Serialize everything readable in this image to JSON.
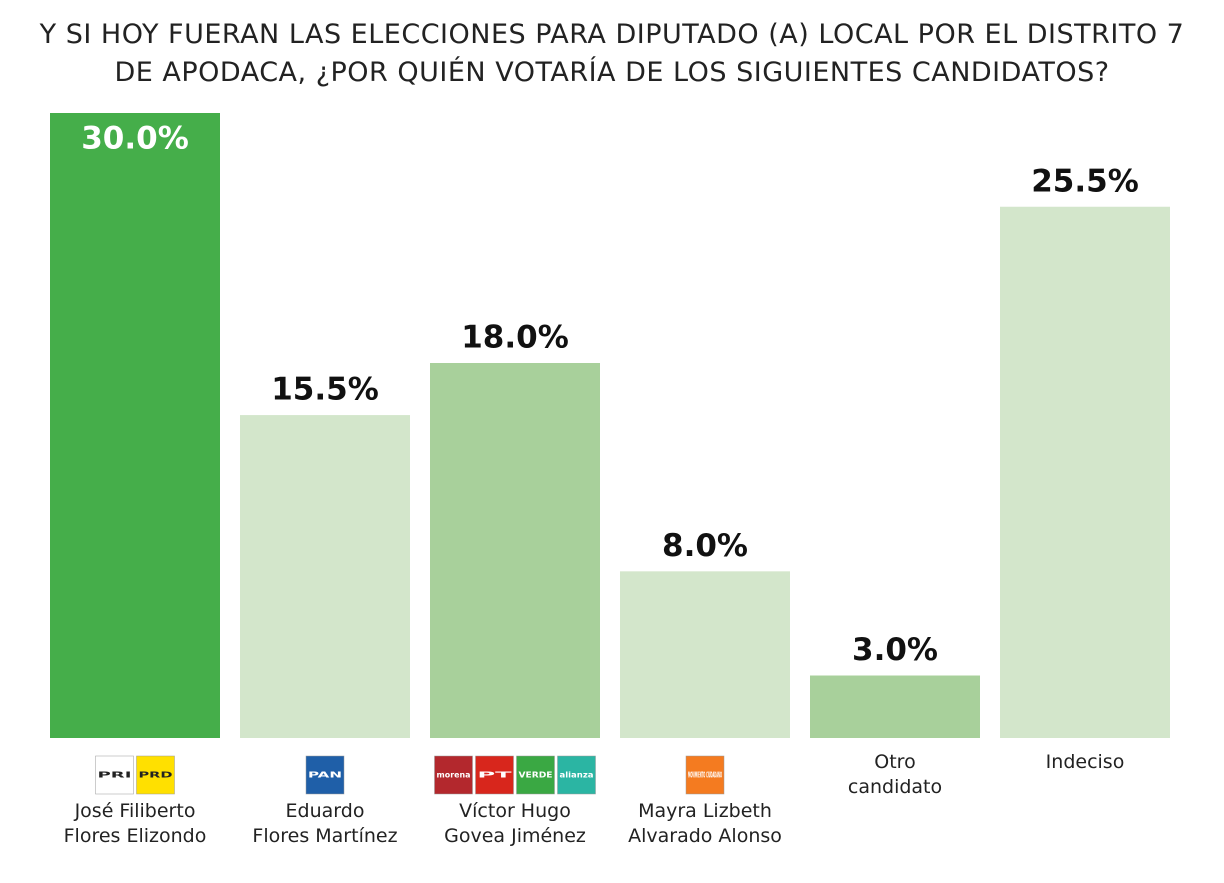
{
  "chart_data": {
    "type": "bar",
    "title": "Y SI HOY FUERAN LAS ELECCIONES PARA DIPUTADO (A) LOCAL POR EL DISTRITO 7\nDE APODACA, ¿POR QUIÉN VOTARÍA DE LOS SIGUIENTES CANDIDATOS?",
    "categories": [
      "José Filiberto\nFlores Elizondo",
      "Eduardo\nFlores Martínez",
      "Víctor Hugo\nGovea Jiménez",
      "Mayra Lizbeth\nAlvarado Alonso",
      "Otro\ncandidato",
      "Indeciso"
    ],
    "values": [
      30.0,
      15.5,
      18.0,
      8.0,
      3.0,
      25.5
    ],
    "value_labels": [
      "30.0%",
      "15.5%",
      "18.0%",
      "8.0%",
      "3.0%",
      "25.5%"
    ],
    "colors": [
      "#45ae4a",
      "#d3e6cb",
      "#a8d09b",
      "#d3e6cb",
      "#a8d09b",
      "#d3e6cb"
    ],
    "ylim": [
      0,
      30
    ]
  },
  "party_logos": [
    [
      {
        "text": "PRI",
        "color": "#ffffff"
      },
      {
        "text": "PRD",
        "color": "#ffe000"
      }
    ],
    [
      {
        "text": "PAN",
        "color": "#1f5fa8"
      }
    ],
    [
      {
        "text": "morena",
        "color": "#b3282d"
      },
      {
        "text": "PT",
        "color": "#d8261c"
      },
      {
        "text": "VERDE",
        "color": "#3aa843"
      },
      {
        "text": "alianza",
        "color": "#2bb5a3"
      }
    ],
    [
      {
        "text": "MOVIMIENTO CIUDADANO",
        "color": "#f47b20"
      }
    ],
    [],
    []
  ]
}
